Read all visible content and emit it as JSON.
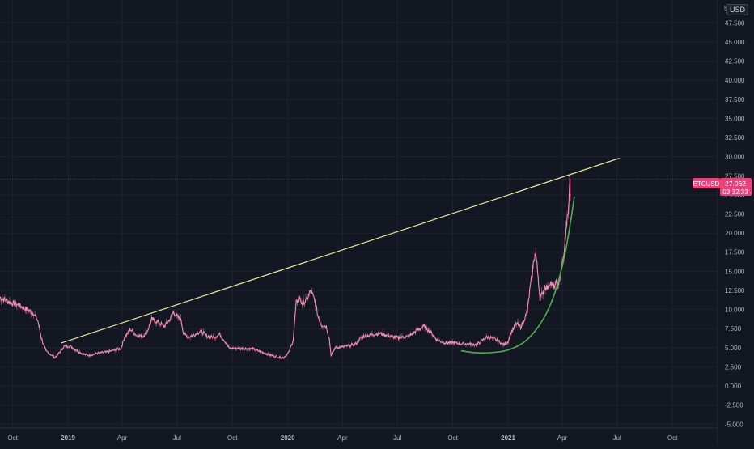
{
  "chart_data": {
    "type": "line",
    "symbol": "ETCUSD",
    "currency": "USD",
    "scale_mode_label": "5(",
    "last_price": "27.062",
    "countdown": "03:32:33",
    "ylim": [
      -5.5,
      50.5
    ],
    "y_ticks": [
      -5,
      -2.5,
      0,
      2.5,
      5,
      7.5,
      10,
      12.5,
      15,
      17.5,
      20,
      22.5,
      25,
      27.5,
      30,
      32.5,
      35,
      37.5,
      40,
      42.5,
      45,
      47.5
    ],
    "y_tick_labels": [
      "-5.000",
      "-2.500",
      "0.000",
      "2.500",
      "5.000",
      "7.500",
      "10.000",
      "12.500",
      "15.000",
      "17.500",
      "20.000",
      "22.500",
      "25.000",
      "27.500",
      "30.000",
      "32.500",
      "35.000",
      "37.500",
      "40.000",
      "42.500",
      "45.000",
      "47.500"
    ],
    "xlim": [
      "2018-09-10",
      "2021-12-15"
    ],
    "x_ticks": [
      {
        "date": "2018-10-01",
        "label": "Oct",
        "bold": false
      },
      {
        "date": "2019-01-01",
        "label": "2019",
        "bold": true
      },
      {
        "date": "2019-04-01",
        "label": "Apr",
        "bold": false
      },
      {
        "date": "2019-07-01",
        "label": "Jul",
        "bold": false
      },
      {
        "date": "2019-10-01",
        "label": "Oct",
        "bold": false
      },
      {
        "date": "2020-01-01",
        "label": "2020",
        "bold": true
      },
      {
        "date": "2020-04-01",
        "label": "Apr",
        "bold": false
      },
      {
        "date": "2020-07-01",
        "label": "Jul",
        "bold": false
      },
      {
        "date": "2020-10-01",
        "label": "Oct",
        "bold": false
      },
      {
        "date": "2021-01-01",
        "label": "2021",
        "bold": true
      },
      {
        "date": "2021-04-01",
        "label": "Apr",
        "bold": false
      },
      {
        "date": "2021-07-01",
        "label": "Jul",
        "bold": false
      },
      {
        "date": "2021-10-01",
        "label": "Oct",
        "bold": false
      }
    ],
    "grid": true,
    "series": [
      {
        "points": [
          [
            "2018-09-10",
            11.6
          ],
          [
            "2018-09-25",
            11.0
          ],
          [
            "2018-10-10",
            10.6
          ],
          [
            "2018-10-25",
            10.0
          ],
          [
            "2018-11-05",
            9.5
          ],
          [
            "2018-11-12",
            8.5
          ],
          [
            "2018-11-18",
            6.2
          ],
          [
            "2018-11-25",
            4.6
          ],
          [
            "2018-12-05",
            4.0
          ],
          [
            "2018-12-10",
            3.7
          ],
          [
            "2018-12-18",
            4.4
          ],
          [
            "2018-12-26",
            5.2
          ],
          [
            "2019-01-05",
            5.2
          ],
          [
            "2019-01-12",
            4.8
          ],
          [
            "2019-01-25",
            4.2
          ],
          [
            "2019-02-05",
            4.0
          ],
          [
            "2019-02-20",
            4.3
          ],
          [
            "2019-03-05",
            4.4
          ],
          [
            "2019-03-20",
            4.7
          ],
          [
            "2019-03-30",
            4.9
          ],
          [
            "2019-04-05",
            6.4
          ],
          [
            "2019-04-15",
            7.4
          ],
          [
            "2019-04-25",
            6.6
          ],
          [
            "2019-05-05",
            6.5
          ],
          [
            "2019-05-12",
            7.0
          ],
          [
            "2019-05-20",
            8.7
          ],
          [
            "2019-05-30",
            8.4
          ],
          [
            "2019-06-10",
            7.8
          ],
          [
            "2019-06-20",
            8.8
          ],
          [
            "2019-06-25",
            9.7
          ],
          [
            "2019-07-01",
            9.1
          ],
          [
            "2019-07-08",
            8.6
          ],
          [
            "2019-07-12",
            6.8
          ],
          [
            "2019-07-20",
            6.4
          ],
          [
            "2019-08-01",
            6.8
          ],
          [
            "2019-08-10",
            7.2
          ],
          [
            "2019-08-20",
            6.5
          ],
          [
            "2019-09-01",
            6.4
          ],
          [
            "2019-09-10",
            6.8
          ],
          [
            "2019-09-20",
            5.7
          ],
          [
            "2019-09-26",
            4.9
          ],
          [
            "2019-10-10",
            4.9
          ],
          [
            "2019-10-25",
            4.9
          ],
          [
            "2019-11-05",
            4.8
          ],
          [
            "2019-11-20",
            4.4
          ],
          [
            "2019-12-01",
            4.1
          ],
          [
            "2019-12-15",
            3.8
          ],
          [
            "2019-12-25",
            3.7
          ],
          [
            "2020-01-03",
            4.4
          ],
          [
            "2020-01-10",
            6.0
          ],
          [
            "2020-01-15",
            10.8
          ],
          [
            "2020-01-20",
            11.6
          ],
          [
            "2020-01-25",
            10.8
          ],
          [
            "2020-02-01",
            11.2
          ],
          [
            "2020-02-08",
            12.4
          ],
          [
            "2020-02-15",
            11.2
          ],
          [
            "2020-02-20",
            9.2
          ],
          [
            "2020-02-26",
            8.0
          ],
          [
            "2020-03-05",
            7.8
          ],
          [
            "2020-03-10",
            6.2
          ],
          [
            "2020-03-13",
            4.0
          ],
          [
            "2020-03-20",
            5.0
          ],
          [
            "2020-04-01",
            5.1
          ],
          [
            "2020-04-15",
            5.3
          ],
          [
            "2020-04-25",
            5.6
          ],
          [
            "2020-05-01",
            6.3
          ],
          [
            "2020-05-10",
            6.6
          ],
          [
            "2020-05-20",
            6.7
          ],
          [
            "2020-06-01",
            6.9
          ],
          [
            "2020-06-15",
            6.6
          ],
          [
            "2020-07-01",
            6.3
          ],
          [
            "2020-07-20",
            6.5
          ],
          [
            "2020-08-01",
            7.2
          ],
          [
            "2020-08-15",
            7.8
          ],
          [
            "2020-08-25",
            7.1
          ],
          [
            "2020-09-05",
            6.0
          ],
          [
            "2020-09-20",
            5.6
          ],
          [
            "2020-10-01",
            5.7
          ],
          [
            "2020-10-15",
            5.5
          ],
          [
            "2020-10-30",
            5.5
          ],
          [
            "2020-11-10",
            5.4
          ],
          [
            "2020-11-20",
            6.0
          ],
          [
            "2020-11-27",
            6.4
          ],
          [
            "2020-12-05",
            6.3
          ],
          [
            "2020-12-15",
            5.9
          ],
          [
            "2020-12-25",
            5.4
          ],
          [
            "2021-01-01",
            5.8
          ],
          [
            "2021-01-06",
            7.0
          ],
          [
            "2021-01-10",
            7.5
          ],
          [
            "2021-01-15",
            8.2
          ],
          [
            "2021-01-22",
            7.7
          ],
          [
            "2021-01-28",
            8.8
          ],
          [
            "2021-02-02",
            9.7
          ],
          [
            "2021-02-06",
            12.5
          ],
          [
            "2021-02-10",
            14.5
          ],
          [
            "2021-02-13",
            16.8
          ],
          [
            "2021-02-16",
            17.3
          ],
          [
            "2021-02-20",
            14.2
          ],
          [
            "2021-02-23",
            11.5
          ],
          [
            "2021-02-27",
            12.0
          ],
          [
            "2021-03-03",
            13.1
          ],
          [
            "2021-03-08",
            12.8
          ],
          [
            "2021-03-12",
            13.7
          ],
          [
            "2021-03-17",
            12.8
          ],
          [
            "2021-03-22",
            13.4
          ],
          [
            "2021-03-26",
            12.9
          ],
          [
            "2021-03-29",
            14.8
          ],
          [
            "2021-04-01",
            16.0
          ],
          [
            "2021-04-04",
            17.2
          ],
          [
            "2021-04-06",
            18.8
          ],
          [
            "2021-04-08",
            21.4
          ],
          [
            "2021-04-10",
            22.0
          ],
          [
            "2021-04-12",
            24.2
          ],
          [
            "2021-04-14",
            27.06
          ]
        ]
      }
    ],
    "annotations": {
      "trendline": {
        "from": [
          "2018-12-20",
          5.6
        ],
        "to": [
          "2021-07-05",
          29.8
        ]
      },
      "curve": [
        [
          "2020-10-15",
          4.6
        ],
        [
          "2020-11-05",
          4.35
        ],
        [
          "2020-12-01",
          4.3
        ],
        [
          "2021-01-01",
          4.6
        ],
        [
          "2021-02-01",
          5.8
        ],
        [
          "2021-03-01",
          8.6
        ],
        [
          "2021-03-20",
          12.0
        ],
        [
          "2021-04-05",
          16.8
        ],
        [
          "2021-04-15",
          21.5
        ],
        [
          "2021-04-21",
          24.8
        ]
      ]
    },
    "colors": {
      "background": "#131722",
      "grid": "#1f2330",
      "axis_text": "#b2b5be",
      "series": "#f48fb1",
      "trendline": "#e8e39a",
      "curve": "#4caf50",
      "price_tag": "#ec407a",
      "price_line": "#c2185b"
    }
  }
}
